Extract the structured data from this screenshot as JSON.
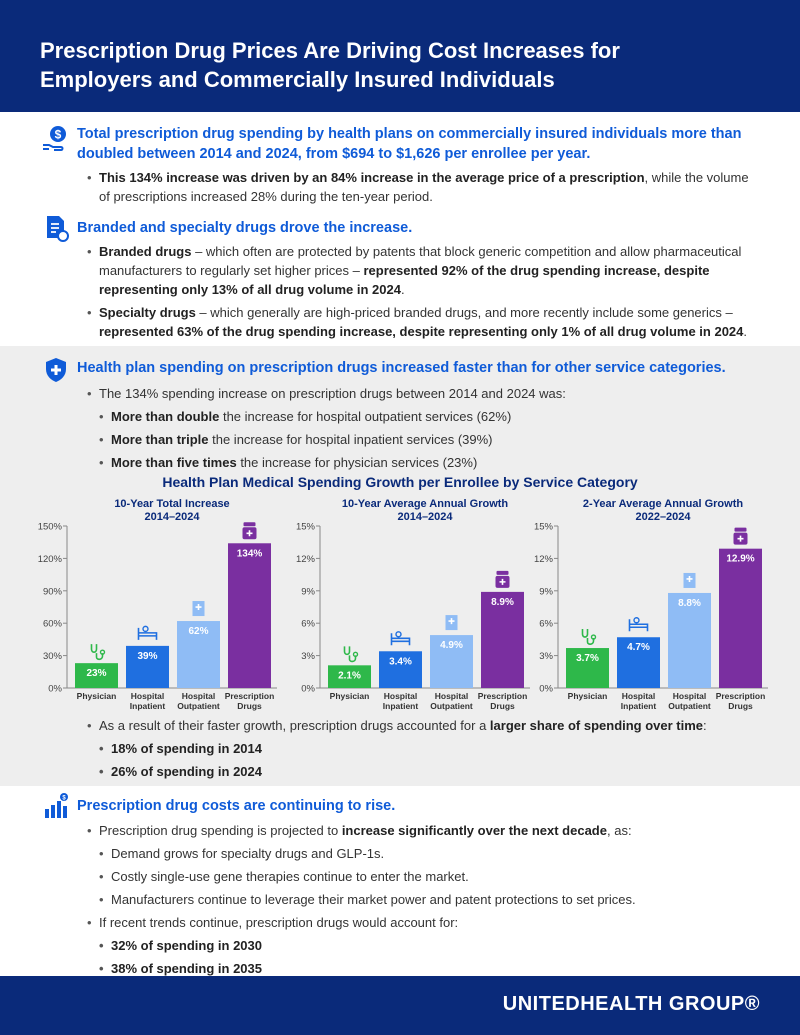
{
  "header": {
    "title_line1": "Prescription Drug Prices Are Driving Cost Increases for",
    "title_line2": "Employers and Commercially Insured Individuals"
  },
  "s1": {
    "icon": "money-hand-icon",
    "headline": "Total prescription drug spending by health plans on commercially insured individuals more than doubled between 2014 and 2024, from $694 to $1,626 per enrollee per year.",
    "b1_bold": "This 134% increase was driven by an 84% increase in the average price of a prescription",
    "b1_rest": ", while the volume of prescriptions increased 28% during the ten-year period."
  },
  "s2": {
    "icon": "prescription-document-icon",
    "headline": "Branded and specialty drugs drove the increase.",
    "b1_lead": "Branded drugs",
    "b1_mid": " – which often are protected by patents that block generic competition and allow pharmaceutical manufacturers to regularly set higher prices – ",
    "b1_bold": "represented 92% of the drug spending increase, despite representing only 13% of all drug volume in 2024",
    "b1_end": ".",
    "b2_lead": "Specialty drugs",
    "b2_mid": " – which generally are high-priced branded drugs, and more recently include some generics – ",
    "b2_bold": "represented 63% of the drug spending increase, despite representing only 1% of all drug volume in 2024",
    "b2_end": "."
  },
  "s3": {
    "icon": "shield-plus-icon",
    "headline": "Health plan spending on prescription drugs increased faster than for other service categories.",
    "intro": "The 134% spending increase on prescription drugs between 2014 and 2024 was:",
    "c1_bold": "More than double",
    "c1_rest": " the increase for hospital outpatient services (62%)",
    "c2_bold": "More than triple",
    "c2_rest": " the increase for hospital inpatient services (39%)",
    "c3_bold": "More than five times",
    "c3_rest": " the increase for physician services (23%)",
    "after_pre": "As a result of their faster growth, prescription drugs accounted for a ",
    "after_bold": "larger share of spending over time",
    "after_end": ":",
    "share1": "18% of spending in 2014",
    "share2": "26% of spending in 2024"
  },
  "s4": {
    "icon": "rising-bar-chart-icon",
    "headline": "Prescription drug costs are continuing to rise.",
    "b1_pre": "Prescription drug spending is projected to ",
    "b1_bold": "increase significantly over the next decade",
    "b1_end": ", as:",
    "sub1": "Demand grows for specialty drugs and GLP-1s.",
    "sub2": "Costly single-use gene therapies continue to enter the market.",
    "sub3": "Manufacturers continue to leverage their market power and patent protections to set prices.",
    "b2": "If recent trends continue, prescription drugs would account for:",
    "p1": "32% of spending in 2030",
    "p2": "38% of spending in 2035"
  },
  "chart_title": "Health Plan Medical Spending Growth per Enrollee by Service Category",
  "colors": {
    "physician": "#2eb84a",
    "inpatient": "#1f6fe0",
    "outpatient": "#8fbcf5",
    "drugs": "#7a2fa0",
    "navy": "#0a2a7a"
  },
  "chart_data": [
    {
      "type": "bar",
      "title": "10-Year Total Increase",
      "subtitle": "2014–2024",
      "categories": [
        "Physician",
        "Hospital Inpatient",
        "Hospital Outpatient",
        "Prescription Drugs"
      ],
      "values": [
        23,
        39,
        62,
        134
      ],
      "labels": [
        "23%",
        "39%",
        "62%",
        "134%"
      ],
      "ylim": [
        0,
        150
      ],
      "yticks": [
        "0%",
        "30%",
        "60%",
        "90%",
        "120%",
        "150%"
      ],
      "icons": [
        "stethoscope-icon",
        "hospital-bed-icon",
        "hospital-building-icon",
        "pill-bottle-icon"
      ]
    },
    {
      "type": "bar",
      "title": "10-Year Average Annual Growth",
      "subtitle": "2014–2024",
      "categories": [
        "Physician",
        "Hospital Inpatient",
        "Hospital Outpatient",
        "Prescription Drugs"
      ],
      "values": [
        2.1,
        3.4,
        4.9,
        8.9
      ],
      "labels": [
        "2.1%",
        "3.4%",
        "4.9%",
        "8.9%"
      ],
      "ylim": [
        0,
        15
      ],
      "yticks": [
        "0%",
        "3%",
        "6%",
        "9%",
        "12%",
        "15%"
      ],
      "icons": [
        "stethoscope-icon",
        "hospital-bed-icon",
        "hospital-building-icon",
        "pill-bottle-icon"
      ]
    },
    {
      "type": "bar",
      "title": "2-Year Average Annual Growth",
      "subtitle": "2022–2024",
      "categories": [
        "Physician",
        "Hospital Inpatient",
        "Hospital Outpatient",
        "Prescription Drugs"
      ],
      "values": [
        3.7,
        4.7,
        8.8,
        12.9
      ],
      "labels": [
        "3.7%",
        "4.7%",
        "8.8%",
        "12.9%"
      ],
      "ylim": [
        0,
        15
      ],
      "yticks": [
        "0%",
        "3%",
        "6%",
        "9%",
        "12%",
        "15%"
      ],
      "icons": [
        "stethoscope-icon",
        "hospital-bed-icon",
        "hospital-building-icon",
        "pill-bottle-icon"
      ]
    }
  ],
  "footer": {
    "logo": "UNITEDHEALTH GROUP®"
  }
}
